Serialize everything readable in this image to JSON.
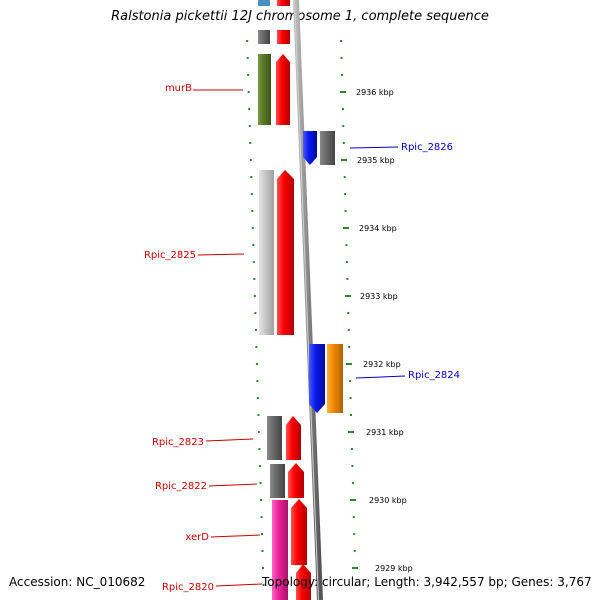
{
  "title": "Ralstonia pickettii 12J chromosome 1, complete sequence",
  "footer": {
    "accession": "Accession: NC_010682",
    "topology": "Topology: circular; Length: 3,942,557 bp; Genes: 3,767"
  },
  "ticks": [
    {
      "label": "2936 kbp"
    },
    {
      "label": "2935 kbp"
    },
    {
      "label": "2934 kbp"
    },
    {
      "label": "2933 kbp"
    },
    {
      "label": "2932 kbp"
    },
    {
      "label": "2931 kbp"
    },
    {
      "label": "2930 kbp"
    },
    {
      "label": "2929 kbp"
    }
  ],
  "genes": [
    {
      "name": "murB",
      "color": "#cc0000"
    },
    {
      "name": "Rpic_2826",
      "color": "#0000cc"
    },
    {
      "name": "Rpic_2825",
      "color": "#cc0000"
    },
    {
      "name": "Rpic_2824",
      "color": "#0000cc"
    },
    {
      "name": "Rpic_2823",
      "color": "#cc0000"
    },
    {
      "name": "Rpic_2822",
      "color": "#cc0000"
    },
    {
      "name": "xerD",
      "color": "#cc0000"
    },
    {
      "name": "Rpic_2820",
      "color": "#cc0000"
    }
  ],
  "colors": {
    "backbone": "#888888",
    "tick_green": "#2a8a2a",
    "feature_red": "#ee0000",
    "feature_gray": "#666666",
    "feature_olive": "#5a7a28",
    "feature_lightgray": "#c8c8c8",
    "feature_blue": "#0a1aee",
    "feature_orange": "#f08a00",
    "feature_pink": "#ee2299"
  }
}
